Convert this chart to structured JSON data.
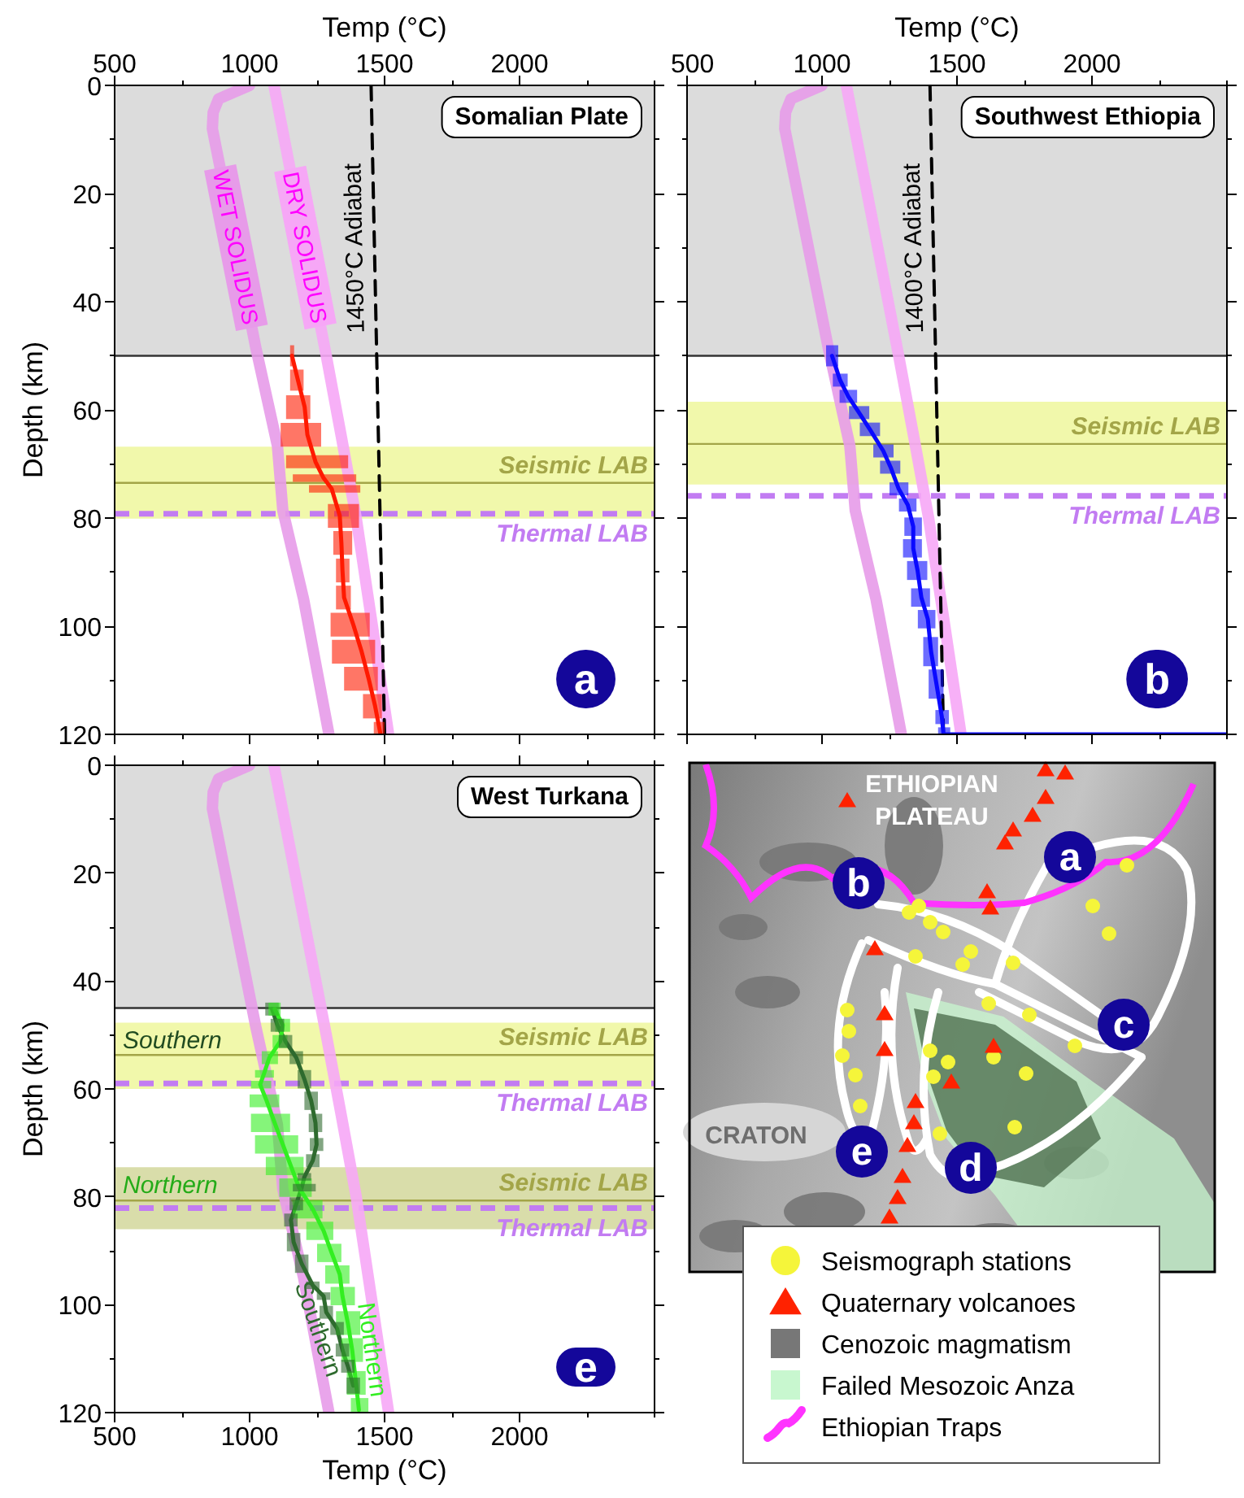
{
  "chart_data": [
    {
      "type": "line",
      "title": "Somalian Plate",
      "xlabel": "Temp (°C)",
      "ylabel": "Depth (km)",
      "xlim": [
        500,
        2500
      ],
      "ylim": [
        120,
        0
      ],
      "xticks": [
        500,
        {
          "value": 750,
          "label": null
        },
        1000,
        {
          "value": 1250,
          "label": null
        },
        1500,
        {
          "value": 1750,
          "label": null
        },
        2000,
        {
          "value": 2250,
          "label": null
        },
        {
          "value": 2500,
          "label": null
        }
      ],
      "yticks": [
        0,
        {
          "value": 10,
          "label": null
        },
        20,
        {
          "value": 30,
          "label": null
        },
        40,
        {
          "value": 50,
          "label": null
        },
        60,
        {
          "value": 70,
          "label": null
        },
        80,
        {
          "value": 90,
          "label": null
        },
        100,
        {
          "value": 110,
          "label": null
        },
        120
      ],
      "bands": [
        {
          "axis": "y",
          "from": 0,
          "to": 50,
          "color": "#dcdcdc"
        },
        {
          "axis": "y",
          "from": 66.8,
          "to": 80.1,
          "color": "#f1f8ab"
        }
      ],
      "ref_lines": [
        {
          "axis": "y",
          "value": 50,
          "color": "#333333"
        },
        {
          "axis": "y",
          "value": 73.5,
          "label": "Seismic LAB",
          "color": "#a3a548"
        },
        {
          "axis": "y",
          "value": 79.2,
          "label": "Thermal LAB",
          "color": "#c27cf2",
          "line_style": "dashed"
        }
      ],
      "series": [
        {
          "name": "WET SOLIDUS",
          "color": "#e79be9",
          "x": [
            1000,
            885,
            865,
            862,
            1023,
            1103,
            1123,
            1200,
            1294
          ],
          "values": [
            0,
            2.5,
            5,
            8,
            48.5,
            66.6,
            78.6,
            95,
            120
          ]
        },
        {
          "name": "DRY SOLIDUS",
          "color": "#f6a7f6",
          "x": [
            1090,
            1284,
            1340,
            1395,
            1455,
            1515
          ],
          "values": [
            0,
            50,
            65,
            80,
            100,
            120
          ]
        },
        {
          "name": "1450°C Adiabat",
          "color": "#000000",
          "line_style": "dashed",
          "x": [
            1450,
            1500
          ],
          "values": [
            0,
            120
          ]
        },
        {
          "color": "#ff1a00",
          "x": [
            1157,
            1179,
            1204,
            1214,
            1244,
            1274,
            1304,
            1334,
            1340,
            1344,
            1350,
            1384,
            1415,
            1441,
            1465,
            1485
          ],
          "values": [
            50,
            54.5,
            59.5,
            64.6,
            69.6,
            72.6,
            74.6,
            79.6,
            84.6,
            89.7,
            94.7,
            99.7,
            104.7,
            109.7,
            114.8,
            120
          ],
          "xerrors": [
            [
              1150,
              1165
            ],
            [
              1150,
              1200
            ],
            [
              1135,
              1225
            ],
            [
              1115,
              1265
            ],
            [
              1135,
              1365
            ],
            [
              1160,
              1395
            ],
            [
              1220,
              1410
            ],
            [
              1290,
              1405
            ],
            [
              1310,
              1380
            ],
            [
              1320,
              1370
            ],
            [
              1320,
              1375
            ],
            [
              1300,
              1445
            ],
            [
              1305,
              1465
            ],
            [
              1350,
              1475
            ],
            [
              1420,
              1490
            ],
            [
              1460,
              1500
            ]
          ]
        }
      ],
      "annotations": [
        "a"
      ]
    },
    {
      "type": "line",
      "title": "Southwest Ethiopia",
      "xlabel": "Temp (°C)",
      "xlim": [
        500,
        2500
      ],
      "ylim": [
        120,
        0
      ],
      "tick_labels": "x",
      "xticks": [
        500,
        {
          "value": 750,
          "label": null
        },
        1000,
        {
          "value": 1250,
          "label": null
        },
        1500,
        {
          "value": 1750,
          "label": null
        },
        2000,
        {
          "value": 2250,
          "label": null
        },
        {
          "value": 2500,
          "label": null
        }
      ],
      "yticks": [
        0,
        {
          "value": 10,
          "label": null
        },
        20,
        {
          "value": 30,
          "label": null
        },
        40,
        {
          "value": 50,
          "label": null
        },
        60,
        {
          "value": 70,
          "label": null
        },
        80,
        {
          "value": 90,
          "label": null
        },
        100,
        {
          "value": 110,
          "label": null
        },
        120
      ],
      "bands": [
        {
          "axis": "y",
          "from": 0,
          "to": 50,
          "color": "#dcdcdc"
        },
        {
          "axis": "y",
          "from": 58.5,
          "to": 73.8,
          "color": "#f1f8ab"
        }
      ],
      "ref_lines": [
        {
          "axis": "y",
          "value": 50,
          "color": "#333333"
        },
        {
          "axis": "y",
          "value": 66.3,
          "label": "Seismic LAB",
          "color": "#a3a548"
        },
        {
          "axis": "y",
          "value": 75.9,
          "label": "Thermal LAB",
          "color": "#c27cf2",
          "line_style": "dashed"
        }
      ],
      "series": [
        {
          "color": "#e79be9",
          "x": [
            1000,
            885,
            865,
            862,
            1023,
            1103,
            1123,
            1200,
            1294
          ],
          "values": [
            0,
            2.5,
            5,
            8,
            48.5,
            66.6,
            78.6,
            95,
            120
          ]
        },
        {
          "color": "#f6a7f6",
          "x": [
            1090,
            1284,
            1340,
            1395,
            1455,
            1515
          ],
          "values": [
            0,
            50,
            65,
            80,
            100,
            120
          ]
        },
        {
          "name": "1400°C Adiabat",
          "color": "#000000",
          "line_style": "dashed",
          "x": [
            1400,
            1450
          ],
          "values": [
            0,
            120
          ]
        },
        {
          "color": "#0a0aff",
          "x": [
            1037,
            1067,
            1097,
            1137,
            1177,
            1227,
            1254,
            1284,
            1318,
            1338,
            1338,
            1354,
            1368,
            1392,
            1404,
            1424,
            1444,
            1450,
            2500
          ],
          "values": [
            50,
            54.5,
            57.5,
            60.5,
            63.6,
            67.6,
            70.6,
            74.6,
            77.6,
            81.6,
            85.6,
            89.7,
            94.7,
            98.7,
            104.7,
            110.7,
            116.8,
            120,
            120
          ],
          "xerrors": [
            [
              1015,
              1060
            ],
            [
              1040,
              1095
            ],
            [
              1065,
              1130
            ],
            [
              1100,
              1175
            ],
            [
              1140,
              1215
            ],
            [
              1190,
              1265
            ],
            [
              1215,
              1290
            ],
            [
              1250,
              1320
            ],
            [
              1285,
              1350
            ],
            [
              1305,
              1370
            ],
            [
              1300,
              1370
            ],
            [
              1315,
              1390
            ],
            [
              1330,
              1400
            ],
            [
              1355,
              1420
            ],
            [
              1375,
              1430
            ],
            [
              1395,
              1450
            ],
            [
              1420,
              1470
            ],
            [
              1430,
              1475
            ],
            null
          ]
        }
      ],
      "annotations": [
        "b"
      ]
    },
    {
      "type": "line",
      "title": "West Turkana",
      "xlabel": "Temp (°C)",
      "ylabel": "Depth (km)",
      "xlim": [
        500,
        2500
      ],
      "ylim": [
        120,
        0
      ],
      "xticks": [
        500,
        {
          "value": 750,
          "label": null
        },
        1000,
        {
          "value": 1250,
          "label": null
        },
        1500,
        {
          "value": 1750,
          "label": null
        },
        2000,
        {
          "value": 2250,
          "label": null
        },
        {
          "value": 2500,
          "label": null
        }
      ],
      "yticks": [
        0,
        {
          "value": 10,
          "label": null
        },
        20,
        {
          "value": 30,
          "label": null
        },
        40,
        {
          "value": 50,
          "label": null
        },
        60,
        {
          "value": 70,
          "label": null
        },
        80,
        {
          "value": 90,
          "label": null
        },
        100,
        {
          "value": 110,
          "label": null
        },
        120
      ],
      "bands": [
        {
          "axis": "y",
          "from": 0,
          "to": 45,
          "color": "#dcdcdc"
        },
        {
          "axis": "y",
          "from": 47.7,
          "to": 60,
          "label": "Southern",
          "color": "#f1f8ab"
        },
        {
          "axis": "y",
          "from": 74.5,
          "to": 86,
          "label": "Northern",
          "color": "#d9ddaa"
        }
      ],
      "ref_lines": [
        {
          "axis": "y",
          "value": 45,
          "color": "#333333"
        },
        {
          "axis": "y",
          "value": 53.7,
          "label": "Seismic LAB",
          "color": "#a3a548"
        },
        {
          "axis": "y",
          "value": 59,
          "label": "Thermal LAB",
          "color": "#c27cf2",
          "line_style": "dashed"
        },
        {
          "axis": "y",
          "value": 80.7,
          "label": "Seismic LAB",
          "color": "#a3a548"
        },
        {
          "axis": "y",
          "value": 82.1,
          "label": "Thermal LAB",
          "color": "#c27cf2",
          "line_style": "dashed"
        }
      ],
      "series": [
        {
          "color": "#e79be9",
          "x": [
            1000,
            885,
            865,
            862,
            1023,
            1103,
            1123,
            1200,
            1294
          ],
          "values": [
            0,
            2.5,
            5,
            8,
            48.5,
            66.6,
            78.6,
            95,
            120
          ]
        },
        {
          "color": "#f6a7f6",
          "x": [
            1090,
            1284,
            1340,
            1395,
            1455,
            1515
          ],
          "values": [
            0,
            50,
            65,
            80,
            100,
            120
          ]
        },
        {
          "name": "Southern",
          "color": "#2e6a2e",
          "x": [
            1083,
            1103,
            1133,
            1173,
            1203,
            1228,
            1244,
            1248,
            1234,
            1203,
            1193,
            1173,
            1153,
            1163,
            1193,
            1234,
            1274,
            1284,
            1324,
            1344,
            1364,
            1384
          ],
          "values": [
            45.2,
            48.2,
            51.2,
            54.2,
            58.2,
            62.2,
            66.3,
            70.3,
            73.3,
            76.3,
            78.3,
            81.3,
            84.3,
            88.4,
            92.4,
            96.4,
            98.4,
            101.4,
            104.4,
            108.4,
            111.4,
            115
          ],
          "xerrors": [
            [
              1058,
              1108
            ],
            [
              1078,
              1128
            ],
            [
              1108,
              1158
            ],
            [
              1148,
              1198
            ],
            [
              1178,
              1228
            ],
            [
              1203,
              1253
            ],
            [
              1219,
              1269
            ],
            [
              1223,
              1273
            ],
            [
              1209,
              1259
            ],
            [
              1178,
              1228
            ],
            [
              1160,
              1245
            ],
            [
              1148,
              1198
            ],
            [
              1128,
              1178
            ],
            [
              1138,
              1188
            ],
            [
              1168,
              1218
            ],
            [
              1209,
              1259
            ],
            [
              1249,
              1299
            ],
            [
              1259,
              1309
            ],
            [
              1299,
              1349
            ],
            [
              1319,
              1369
            ],
            [
              1339,
              1389
            ],
            [
              1359,
              1409
            ]
          ]
        },
        {
          "name": "Northern",
          "color": "#33ee22",
          "x": [
            1093,
            1123,
            1113,
            1073,
            1053,
            1039,
            1063,
            1093,
            1123,
            1153,
            1183,
            1234,
            1274,
            1304,
            1334,
            1344,
            1364,
            1380,
            1394,
            1405
          ],
          "values": [
            45.2,
            48.2,
            51.2,
            54.2,
            57.2,
            59.2,
            62.2,
            66.3,
            70.3,
            74.3,
            78.3,
            82.3,
            86.3,
            90.4,
            94.4,
            98.4,
            103.4,
            108.4,
            114.5,
            119.5
          ],
          "xerrors": [
            [
              1070,
              1115
            ],
            [
              1095,
              1150
            ],
            [
              1085,
              1140
            ],
            [
              1045,
              1105
            ],
            [
              1020,
              1090
            ],
            [
              1005,
              1080
            ],
            [
              1000,
              1110
            ],
            [
              1005,
              1150
            ],
            [
              1020,
              1180
            ],
            [
              1060,
              1200
            ],
            [
              1110,
              1230
            ],
            [
              1160,
              1270
            ],
            [
              1210,
              1310
            ],
            [
              1250,
              1340
            ],
            [
              1280,
              1370
            ],
            [
              1300,
              1390
            ],
            [
              1320,
              1410
            ],
            [
              1340,
              1420
            ],
            [
              1360,
              1430
            ],
            [
              1375,
              1440
            ]
          ]
        }
      ],
      "annotations": [
        "e"
      ]
    },
    {
      "type": "other",
      "annotations": [
        "ETHIOPIAN PLATEAU",
        "CRATON",
        "a",
        "b",
        "c",
        "d",
        "e"
      ],
      "legend": "bottom",
      "series": [
        {
          "name": "Seismograph stations",
          "type": "scatter",
          "marker": "circle",
          "color": "#f5f53a"
        },
        {
          "name": "Quaternary volcanoes",
          "type": "scatter",
          "marker": "triangle",
          "color": "#ff2200"
        },
        {
          "name": "Cenozoic magmatism",
          "type": "area",
          "color": "#777777"
        },
        {
          "name": "Failed Mesozoic Anza",
          "type": "area",
          "color": "#c8f7cf"
        },
        {
          "name": "Ethiopian Traps",
          "type": "line",
          "color": "#ff33ff"
        }
      ]
    }
  ]
}
